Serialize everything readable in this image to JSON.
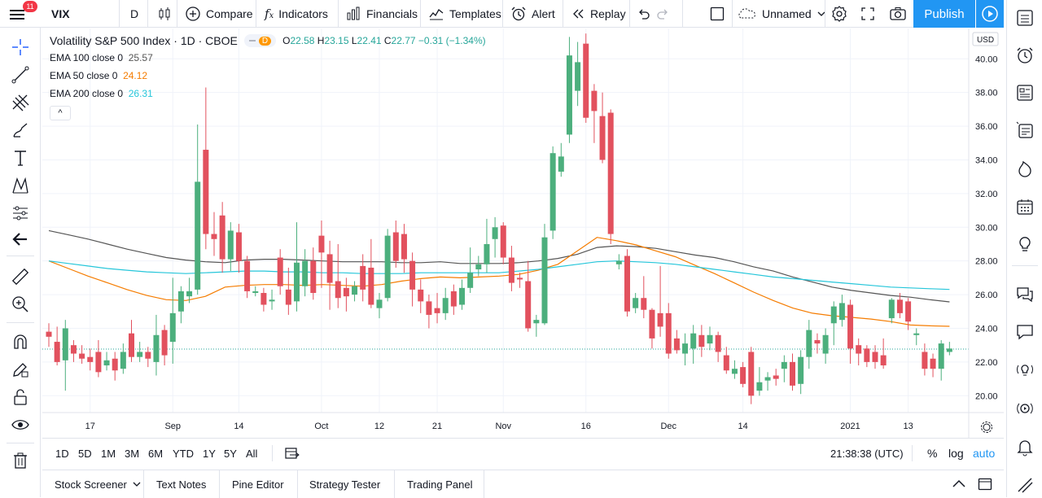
{
  "header": {
    "menu_badge": "11",
    "symbol": "VIX",
    "interval": "D",
    "compare": "Compare",
    "indicators": "Indicators",
    "financials": "Financials",
    "templates": "Templates",
    "alert": "Alert",
    "replay": "Replay",
    "layout_name": "Unnamed",
    "publish": "Publish"
  },
  "legend": {
    "title": "Volatility S&P 500 Index · 1D · CBOE",
    "delay_badge": "D",
    "ohlc": {
      "o": "22.58",
      "h": "23.15",
      "l": "22.41",
      "c": "22.77",
      "change": "−0.31 (−1.34%)"
    },
    "indicators": [
      {
        "name": "EMA 100 close 0",
        "value": "25.57",
        "color": "#555555"
      },
      {
        "name": "EMA 50 close 0",
        "value": "24.12",
        "color": "#f57c00"
      },
      {
        "name": "EMA 200 close 0",
        "value": "26.31",
        "color": "#26c6da"
      }
    ],
    "collapse": "^"
  },
  "colors": {
    "up": "#26a69a",
    "down": "#ef5350",
    "upcandle": "#4caf7d",
    "downcandle": "#e2515e",
    "accent": "#2196f3"
  },
  "chart_data": {
    "type": "candlestick",
    "currency": "USD",
    "y_ticks": [
      "40.00",
      "38.00",
      "36.00",
      "34.00",
      "32.00",
      "30.00",
      "28.00",
      "26.00",
      "24.00",
      "22.00",
      "20.00"
    ],
    "ylim": [
      19.0,
      41.8
    ],
    "x_labels": [
      {
        "label": "17",
        "i": 5
      },
      {
        "label": "Sep",
        "i": 15
      },
      {
        "label": "14",
        "i": 23
      },
      {
        "label": "Oct",
        "i": 33
      },
      {
        "label": "12",
        "i": 40
      },
      {
        "label": "21",
        "i": 47
      },
      {
        "label": "Nov",
        "i": 55
      },
      {
        "label": "16",
        "i": 65
      },
      {
        "label": "Dec",
        "i": 75
      },
      {
        "label": "14",
        "i": 84
      },
      {
        "label": "2021",
        "i": 97
      },
      {
        "label": "13",
        "i": 104
      }
    ],
    "candles": [
      [
        23.8,
        23.5,
        24.3,
        22.9
      ],
      [
        23.2,
        22.0,
        24.1,
        21.8
      ],
      [
        22.1,
        24.0,
        24.5,
        20.3
      ],
      [
        23.0,
        22.5,
        23.3,
        22.0
      ],
      [
        22.5,
        22.2,
        23.0,
        21.9
      ],
      [
        22.3,
        22.0,
        22.8,
        21.5
      ],
      [
        22.6,
        21.4,
        23.3,
        21.1
      ],
      [
        21.8,
        22.1,
        22.6,
        21.5
      ],
      [
        22.2,
        21.5,
        22.6,
        20.9
      ],
      [
        21.6,
        22.6,
        23.1,
        21.3
      ],
      [
        23.7,
        22.3,
        24.5,
        22.0
      ],
      [
        22.3,
        22.6,
        23.2,
        22.0
      ],
      [
        22.6,
        22.2,
        22.9,
        21.7
      ],
      [
        22.0,
        23.6,
        24.8,
        21.2
      ],
      [
        23.9,
        22.4,
        24.2,
        21.8
      ],
      [
        23.2,
        24.9,
        27.0,
        21.9
      ],
      [
        25.0,
        26.2,
        26.5,
        24.3
      ],
      [
        25.9,
        26.2,
        27.0,
        25.5
      ],
      [
        26.3,
        32.7,
        36.1,
        26.0
      ],
      [
        34.6,
        29.6,
        38.3,
        28.7
      ],
      [
        29.6,
        29.3,
        30.9,
        28.3
      ],
      [
        30.7,
        28.1,
        31.5,
        27.3
      ],
      [
        28.1,
        29.8,
        30.3,
        27.4
      ],
      [
        29.7,
        28.0,
        30.2,
        27.3
      ],
      [
        28.0,
        26.2,
        28.3,
        25.8
      ],
      [
        26.1,
        26.2,
        26.5,
        25.9
      ],
      [
        26.1,
        25.4,
        26.4,
        25.0
      ],
      [
        25.6,
        25.7,
        26.3,
        25.1
      ],
      [
        28.2,
        26.5,
        28.7,
        26.0
      ],
      [
        26.3,
        25.4,
        27.6,
        24.8
      ],
      [
        25.6,
        27.9,
        30.3,
        25.0
      ],
      [
        26.5,
        28.0,
        28.7,
        25.9
      ],
      [
        28.0,
        26.1,
        28.8,
        25.7
      ],
      [
        29.5,
        28.5,
        30.4,
        26.4
      ],
      [
        28.4,
        26.7,
        29.2,
        25.1
      ],
      [
        26.8,
        25.8,
        29.0,
        25.2
      ],
      [
        26.4,
        25.9,
        27.0,
        25.0
      ],
      [
        26.0,
        26.5,
        26.8,
        25.6
      ],
      [
        27.7,
        26.3,
        28.4,
        25.6
      ],
      [
        27.6,
        25.4,
        29.3,
        25.2
      ],
      [
        25.2,
        25.7,
        26.1,
        24.6
      ],
      [
        25.8,
        29.5,
        29.9,
        25.6
      ],
      [
        29.7,
        28.0,
        30.4,
        27.6
      ],
      [
        29.6,
        28.1,
        30.2,
        27.3
      ],
      [
        28.0,
        26.3,
        28.5,
        25.3
      ],
      [
        26.3,
        25.6,
        26.9,
        24.9
      ],
      [
        25.6,
        24.8,
        26.0,
        24.0
      ],
      [
        25.2,
        24.9,
        26.1,
        24.3
      ],
      [
        24.9,
        25.8,
        26.4,
        24.5
      ],
      [
        26.2,
        25.3,
        26.6,
        24.8
      ],
      [
        25.4,
        26.4,
        26.9,
        25.1
      ],
      [
        26.4,
        27.3,
        28.8,
        26.1
      ],
      [
        27.5,
        27.8,
        28.3,
        27.1
      ],
      [
        27.8,
        29.0,
        30.5,
        27.3
      ],
      [
        29.3,
        30.0,
        30.6,
        28.2
      ],
      [
        30.1,
        28.2,
        30.3,
        27.8
      ],
      [
        28.2,
        26.7,
        28.9,
        26.2
      ],
      [
        27.0,
        26.9,
        27.3,
        26.4
      ],
      [
        26.8,
        24.0,
        28.0,
        23.8
      ],
      [
        24.3,
        24.5,
        24.8,
        23.5
      ],
      [
        24.3,
        29.4,
        30.2,
        24.2
      ],
      [
        29.8,
        34.4,
        34.8,
        29.3
      ],
      [
        33.3,
        34.2,
        35.0,
        33.0
      ],
      [
        35.5,
        40.2,
        41.3,
        35.0
      ],
      [
        38.1,
        39.8,
        41.0,
        37.2
      ],
      [
        40.9,
        36.5,
        41.5,
        36.2
      ],
      [
        38.1,
        36.9,
        38.5,
        35.0
      ],
      [
        36.6,
        34.0,
        38.0,
        33.8
      ],
      [
        36.8,
        29.6,
        37.0,
        29.0
      ],
      [
        27.8,
        28.0,
        28.4,
        27.5
      ],
      [
        28.3,
        25.0,
        28.7,
        24.7
      ],
      [
        25.2,
        25.8,
        26.1,
        24.9
      ],
      [
        25.8,
        25.1,
        27.1,
        24.6
      ],
      [
        25.1,
        23.4,
        25.2,
        22.8
      ],
      [
        24.9,
        24.1,
        27.7,
        23.5
      ],
      [
        24.9,
        22.5,
        25.5,
        22.2
      ],
      [
        23.4,
        22.7,
        23.9,
        22.5
      ],
      [
        22.5,
        23.1,
        23.7,
        21.8
      ],
      [
        22.8,
        23.7,
        24.2,
        21.9
      ],
      [
        23.6,
        22.9,
        24.2,
        22.3
      ],
      [
        23.1,
        23.6,
        24.1,
        22.7
      ],
      [
        23.6,
        22.6,
        23.8,
        22.0
      ],
      [
        22.4,
        21.5,
        22.9,
        21.3
      ],
      [
        21.3,
        21.6,
        22.1,
        21.0
      ],
      [
        21.7,
        20.7,
        22.0,
        20.5
      ],
      [
        22.6,
        20.0,
        22.9,
        19.5
      ],
      [
        20.3,
        20.8,
        21.7,
        20.0
      ],
      [
        20.9,
        21.1,
        21.4,
        20.3
      ],
      [
        21.2,
        21.0,
        21.6,
        20.6
      ],
      [
        21.6,
        22.0,
        22.4,
        20.8
      ],
      [
        22.0,
        20.6,
        22.5,
        20.3
      ],
      [
        20.7,
        22.3,
        22.7,
        20.1
      ],
      [
        22.3,
        23.9,
        24.5,
        21.6
      ],
      [
        23.3,
        23.1,
        23.7,
        22.5
      ],
      [
        22.5,
        23.6,
        24.0,
        21.9
      ],
      [
        24.3,
        25.3,
        25.6,
        23.0
      ],
      [
        24.5,
        25.5,
        26.0,
        24.1
      ],
      [
        25.4,
        22.8,
        25.7,
        21.9
      ],
      [
        23.0,
        22.5,
        23.4,
        21.8
      ],
      [
        22.8,
        22.0,
        23.0,
        21.7
      ],
      [
        22.6,
        22.0,
        23.0,
        21.6
      ],
      [
        22.4,
        21.8,
        23.4,
        21.6
      ],
      [
        24.6,
        25.7,
        25.8,
        24.3
      ],
      [
        25.7,
        24.9,
        26.1,
        24.6
      ],
      [
        25.6,
        24.4,
        25.8,
        23.9
      ],
      [
        23.6,
        23.7,
        24.0,
        23.0
      ],
      [
        22.6,
        21.6,
        23.1,
        21.2
      ],
      [
        22.2,
        21.6,
        22.5,
        21.1
      ],
      [
        21.6,
        23.1,
        23.3,
        20.9
      ],
      [
        22.6,
        22.8,
        23.2,
        22.4
      ]
    ],
    "ema100": [
      29.8,
      29.55,
      29.3,
      29.0,
      28.7,
      28.45,
      28.2,
      28.05,
      27.95,
      27.9,
      28.05,
      28.1,
      28.1,
      28.05,
      28.0,
      27.95,
      27.95,
      27.95,
      27.9,
      27.9,
      27.95,
      27.85,
      27.85,
      27.85,
      27.9,
      28.0,
      28.15,
      28.4,
      28.8,
      28.9,
      28.85,
      28.75,
      28.55,
      28.35,
      28.2,
      27.95,
      27.65,
      27.4,
      27.05,
      26.75,
      26.45,
      26.25,
      26.1,
      25.95,
      25.85,
      25.7,
      25.57
    ],
    "ema50": [
      28.0,
      27.55,
      27.1,
      26.7,
      26.3,
      25.95,
      25.7,
      25.65,
      25.9,
      26.45,
      26.55,
      26.6,
      26.6,
      26.55,
      26.6,
      26.55,
      26.5,
      26.6,
      26.8,
      26.95,
      27.05,
      27.0,
      27.05,
      27.1,
      27.2,
      27.45,
      27.8,
      28.6,
      29.4,
      29.2,
      28.95,
      28.6,
      28.25,
      27.75,
      27.25,
      26.7,
      26.15,
      25.65,
      25.2,
      24.9,
      24.75,
      24.65,
      24.55,
      24.4,
      24.2,
      24.15,
      24.12
    ],
    "ema200": [
      28.0,
      27.85,
      27.7,
      27.55,
      27.45,
      27.35,
      27.3,
      27.25,
      27.3,
      27.35,
      27.4,
      27.4,
      27.35,
      27.35,
      27.3,
      27.3,
      27.25,
      27.25,
      27.25,
      27.3,
      27.3,
      27.3,
      27.3,
      27.3,
      27.4,
      27.5,
      27.65,
      27.8,
      27.95,
      28.0,
      27.95,
      27.9,
      27.8,
      27.65,
      27.5,
      27.35,
      27.2,
      27.05,
      26.95,
      26.85,
      26.75,
      26.65,
      26.55,
      26.45,
      26.4,
      26.35,
      26.31
    ]
  },
  "price_axis": {
    "currency": "USD",
    "last_price": "22.77"
  },
  "time_range": {
    "buttons": [
      "1D",
      "5D",
      "1M",
      "3M",
      "6M",
      "YTD",
      "1Y",
      "5Y",
      "All"
    ],
    "clock": "21:38:38 (UTC)",
    "percent": "%",
    "log": "log",
    "auto": "auto"
  },
  "panels": {
    "tabs": [
      "Stock Screener",
      "Text Notes",
      "Pine Editor",
      "Strategy Tester",
      "Trading Panel"
    ]
  }
}
